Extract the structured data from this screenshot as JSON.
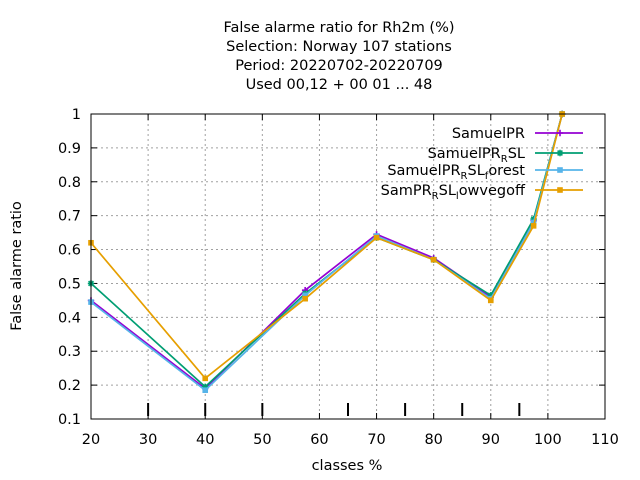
{
  "chart_data": {
    "type": "line",
    "title_lines": [
      "False alarme ratio  for Rh2m (%)",
      "Selection: Norway    107 stations",
      "Period: 20220702-20220709",
      "Used  00,12  + 00 01 ... 48"
    ],
    "xlabel": "classes %",
    "ylabel": "False alarme ratio",
    "xlim": [
      20,
      110
    ],
    "ylim": [
      0.1,
      1.0
    ],
    "xticks": [
      20,
      30,
      40,
      50,
      60,
      70,
      80,
      90,
      100,
      110
    ],
    "yticks": [
      0.1,
      0.2,
      0.3,
      0.4,
      0.5,
      0.6,
      0.7,
      0.8,
      0.9,
      1.0
    ],
    "ytick_labels": [
      "0.1",
      "0.2",
      "0.3",
      "0.4",
      "0.5",
      "0.6",
      "0.7",
      "0.8",
      "0.9",
      "1"
    ],
    "grid": true,
    "legend_position": "top-right",
    "class_markers": [
      30,
      40,
      50,
      65,
      75,
      85,
      95
    ],
    "series": [
      {
        "name": "SamuelPR",
        "legend_parts": [
          [
            "SamuelPR",
            false
          ]
        ],
        "color": "#9400d3",
        "marker": "plus",
        "x": [
          20,
          40,
          57.5,
          70,
          80,
          90,
          97.5,
          102.5
        ],
        "y": [
          0.45,
          0.19,
          0.48,
          0.645,
          0.575,
          0.46,
          0.685,
          1.0
        ]
      },
      {
        "name": "SamuelPR_RSL",
        "legend_parts": [
          [
            "SamuelPR",
            false
          ],
          [
            "R",
            true
          ],
          [
            "SL",
            false
          ]
        ],
        "color": "#009e73",
        "marker": "star",
        "x": [
          20,
          40,
          57.5,
          70,
          80,
          90,
          97.5,
          102.5
        ],
        "y": [
          0.5,
          0.195,
          0.47,
          0.635,
          0.57,
          0.465,
          0.69,
          1.0
        ]
      },
      {
        "name": "SamuelPR_RSL_forest",
        "legend_parts": [
          [
            "SamuelPR",
            false
          ],
          [
            "R",
            true
          ],
          [
            "SL",
            false
          ],
          [
            "f",
            true
          ],
          [
            "orest",
            false
          ]
        ],
        "color": "#56b4e9",
        "marker": "square",
        "x": [
          20,
          40,
          57.5,
          70,
          80,
          90,
          97.5,
          102.5
        ],
        "y": [
          0.445,
          0.185,
          0.465,
          0.64,
          0.57,
          0.455,
          0.68,
          1.0
        ]
      },
      {
        "name": "SamPR_RSL_lowvegoff",
        "legend_parts": [
          [
            "SamPR",
            false
          ],
          [
            "R",
            true
          ],
          [
            "SL",
            false
          ],
          [
            "l",
            true
          ],
          [
            "owvegoff",
            false
          ]
        ],
        "color": "#e69f00",
        "marker": "square",
        "x": [
          20,
          40,
          57.5,
          70,
          80,
          90,
          97.5,
          102.5
        ],
        "y": [
          0.62,
          0.22,
          0.455,
          0.635,
          0.57,
          0.45,
          0.67,
          1.0
        ]
      }
    ]
  }
}
